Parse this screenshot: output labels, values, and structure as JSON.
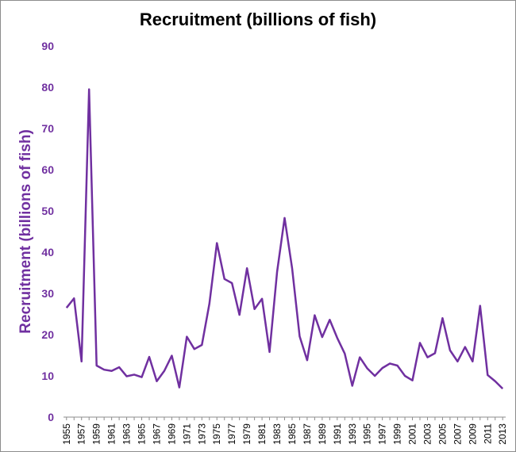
{
  "chart_data": {
    "type": "line",
    "title": "Recruitment (billions of fish)",
    "xlabel": "",
    "ylabel": "Recruitment (billions of fish)",
    "ylim": [
      0,
      90
    ],
    "yticks": [
      "0",
      "10",
      "20",
      "30",
      "40",
      "50",
      "60",
      "70",
      "80",
      "90"
    ],
    "xticks": [
      "1955",
      "1957",
      "1959",
      "1961",
      "1963",
      "1965",
      "1967",
      "1969",
      "1971",
      "1973",
      "1975",
      "1977",
      "1979",
      "1981",
      "1983",
      "1985",
      "1987",
      "1989",
      "1991",
      "1993",
      "1995",
      "1997",
      "1999",
      "2001",
      "2003",
      "2005",
      "2007",
      "2009",
      "2011",
      "2013"
    ],
    "grid": false,
    "legend": "none",
    "line_color": "#7030a0",
    "x": [
      1955,
      1956,
      1957,
      1958,
      1959,
      1960,
      1961,
      1962,
      1963,
      1964,
      1965,
      1966,
      1967,
      1968,
      1969,
      1970,
      1971,
      1972,
      1973,
      1974,
      1975,
      1976,
      1977,
      1978,
      1979,
      1980,
      1981,
      1982,
      1983,
      1984,
      1985,
      1986,
      1987,
      1988,
      1989,
      1990,
      1991,
      1992,
      1993,
      1994,
      1995,
      1996,
      1997,
      1998,
      1999,
      2000,
      2001,
      2002,
      2003,
      2004,
      2005,
      2006,
      2007,
      2008,
      2009,
      2010,
      2011,
      2012,
      2013
    ],
    "series": [
      {
        "values": [
          26.5,
          28.8,
          13.5,
          79.5,
          12.5,
          11.5,
          11.2,
          12.1,
          9.9,
          10.3,
          9.7,
          14.6,
          8.7,
          11.2,
          14.9,
          7.2,
          19.5,
          16.5,
          17.5,
          27.5,
          42.2,
          33.5,
          32.5,
          24.8,
          36.1,
          26.2,
          28.7,
          15.8,
          35.2,
          48.3,
          36.1,
          19.6,
          13.8,
          24.7,
          19.4,
          23.6,
          19.2,
          15.4,
          7.6,
          14.5,
          11.8,
          10.0,
          11.9,
          13.0,
          12.5,
          10.0,
          8.9,
          18.0,
          14.5,
          15.5,
          24.0,
          16.2,
          13.5,
          17.0,
          13.5,
          27.0,
          10.2,
          8.7,
          6.9
        ]
      }
    ]
  }
}
